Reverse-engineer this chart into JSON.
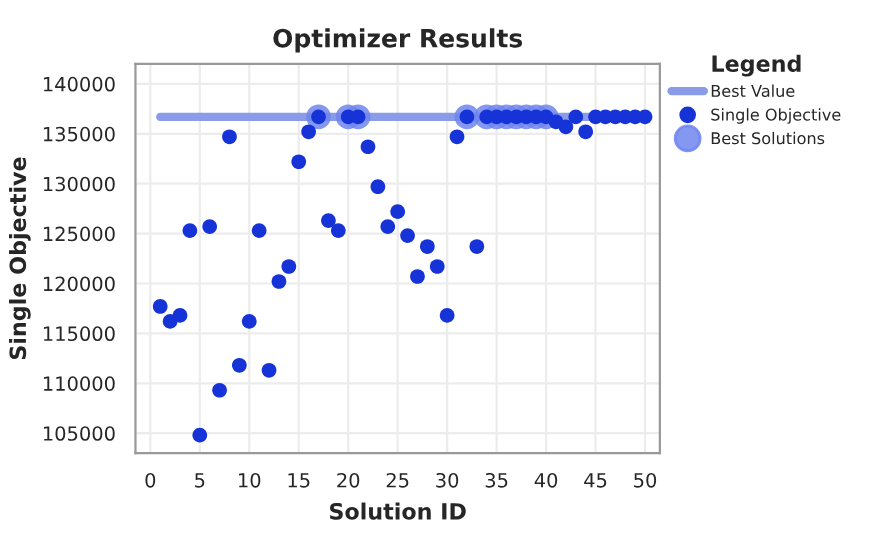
{
  "chart_data": {
    "type": "scatter",
    "title": "Optimizer Results",
    "xlabel": "Solution ID",
    "ylabel": "Single Objective",
    "legend_title": "Legend",
    "xlim": [
      -1.5,
      51.5
    ],
    "ylim": [
      103000,
      142000
    ],
    "xticks": [
      0,
      5,
      10,
      15,
      20,
      25,
      30,
      35,
      40,
      45,
      50
    ],
    "yticks": [
      105000,
      110000,
      115000,
      120000,
      125000,
      130000,
      135000,
      140000
    ],
    "grid": true,
    "legend": "right",
    "series": [
      {
        "name": "Best Value",
        "type": "line",
        "color": "#8a9be8",
        "x": [
          1,
          50
        ],
        "values": [
          136700,
          136700
        ]
      },
      {
        "name": "Single Objective",
        "color": "#1533d6",
        "marker": "circle",
        "x": [
          1,
          2,
          3,
          4,
          5,
          6,
          7,
          8,
          9,
          10,
          11,
          12,
          13,
          14,
          15,
          16,
          17,
          18,
          19,
          20,
          21,
          22,
          23,
          24,
          25,
          26,
          27,
          28,
          29,
          30,
          31,
          32,
          33,
          34,
          35,
          36,
          37,
          38,
          39,
          40,
          41,
          42,
          43,
          44,
          45,
          46,
          47,
          48,
          49,
          50
        ],
        "values": [
          117700,
          116200,
          116800,
          125300,
          104800,
          125700,
          109300,
          134700,
          111800,
          116200,
          125300,
          111300,
          120200,
          121700,
          132200,
          135200,
          136700,
          126300,
          125300,
          136700,
          136700,
          133700,
          129700,
          125700,
          127200,
          124800,
          120700,
          123700,
          121700,
          116800,
          134700,
          136700,
          123700,
          136700,
          136700,
          136700,
          136700,
          136700,
          136700,
          136700,
          136200,
          135700,
          136700,
          135200,
          136700,
          136700,
          136700,
          136700,
          136700,
          136700
        ]
      },
      {
        "name": "Best Solutions",
        "type": "bubble",
        "color": "#6f85ee",
        "x": [
          17,
          20,
          21,
          32,
          34,
          35,
          36,
          37,
          38,
          39,
          40
        ],
        "values": [
          136700,
          136700,
          136700,
          136700,
          136700,
          136700,
          136700,
          136700,
          136700,
          136700,
          136700
        ]
      }
    ]
  }
}
